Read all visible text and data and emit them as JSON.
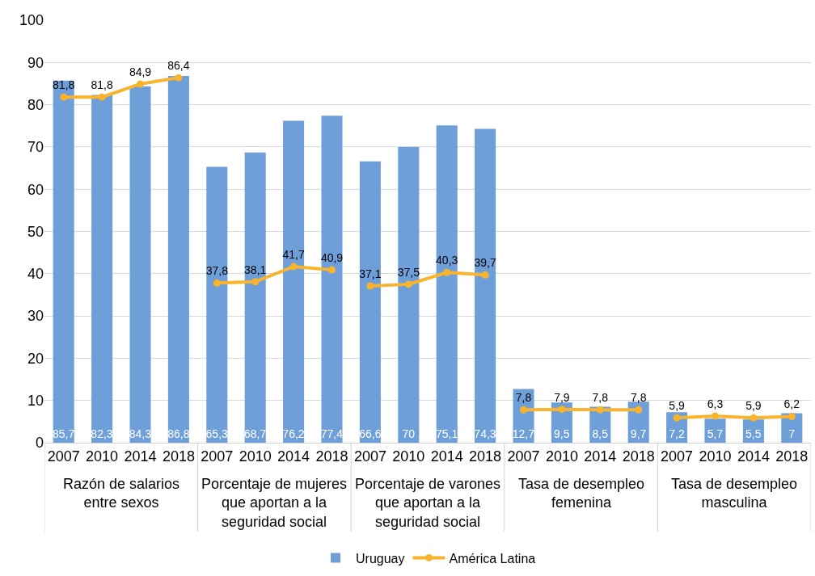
{
  "chart_data": {
    "type": "bar",
    "categories": [
      "2007",
      "2010",
      "2014",
      "2018",
      "2007",
      "2010",
      "2014",
      "2018",
      "2007",
      "2010",
      "2014",
      "2018",
      "2007",
      "2010",
      "2014",
      "2018",
      "2007",
      "2010",
      "2014",
      "2018"
    ],
    "series": [
      {
        "name": "Uruguay",
        "color": "#6f9fd8",
        "values": [
          85.7,
          82.3,
          84.3,
          86.8,
          65.3,
          68.7,
          76.2,
          77.4,
          66.6,
          70,
          75.1,
          74.3,
          12.7,
          9.5,
          8.5,
          9.7,
          7.2,
          5.7,
          5.5,
          7
        ],
        "value_labels": [
          "85,7",
          "82,3",
          "84,3",
          "86,8",
          "65,3",
          "68,7",
          "76,2",
          "77,4",
          "66,6",
          "70",
          "75,1",
          "74,3",
          "12,7",
          "9,5",
          "8,5",
          "9,7",
          "7,2",
          "5,7",
          "5,5",
          "7"
        ]
      },
      {
        "name": "América Latina",
        "type": "line",
        "color": "#f9b42d",
        "values": [
          81.8,
          81.8,
          84.9,
          86.4,
          37.8,
          38.1,
          41.7,
          40.9,
          37.1,
          37.5,
          40.3,
          39.7,
          7.8,
          7.9,
          7.8,
          7.8,
          5.9,
          6.3,
          5.9,
          6.2
        ],
        "value_labels": [
          "81,8",
          "81,8",
          "84,9",
          "86,4",
          "37,8",
          "38,1",
          "41,7",
          "40,9",
          "37,1",
          "37,5",
          "40,3",
          "39,7",
          "7,8",
          "7,9",
          "7,8",
          "7,8",
          "5,9",
          "6,3",
          "5,9",
          "6,2"
        ]
      }
    ],
    "annotations": [
      "Razón de salarios entre sexos",
      "Porcentaje de mujeres que aportan a la seguridad social",
      "Porcentaje de varones que aportan a la seguridad social",
      "Tasa de desempleo femenina",
      "Tasa de desempleo masculina"
    ],
    "ylim": [
      0,
      100
    ],
    "yticks": [
      0,
      10,
      20,
      30,
      40,
      50,
      60,
      70,
      80,
      90,
      100
    ],
    "grid": "y",
    "legend": "bottom",
    "marker": "circle",
    "line_style": "solid"
  }
}
